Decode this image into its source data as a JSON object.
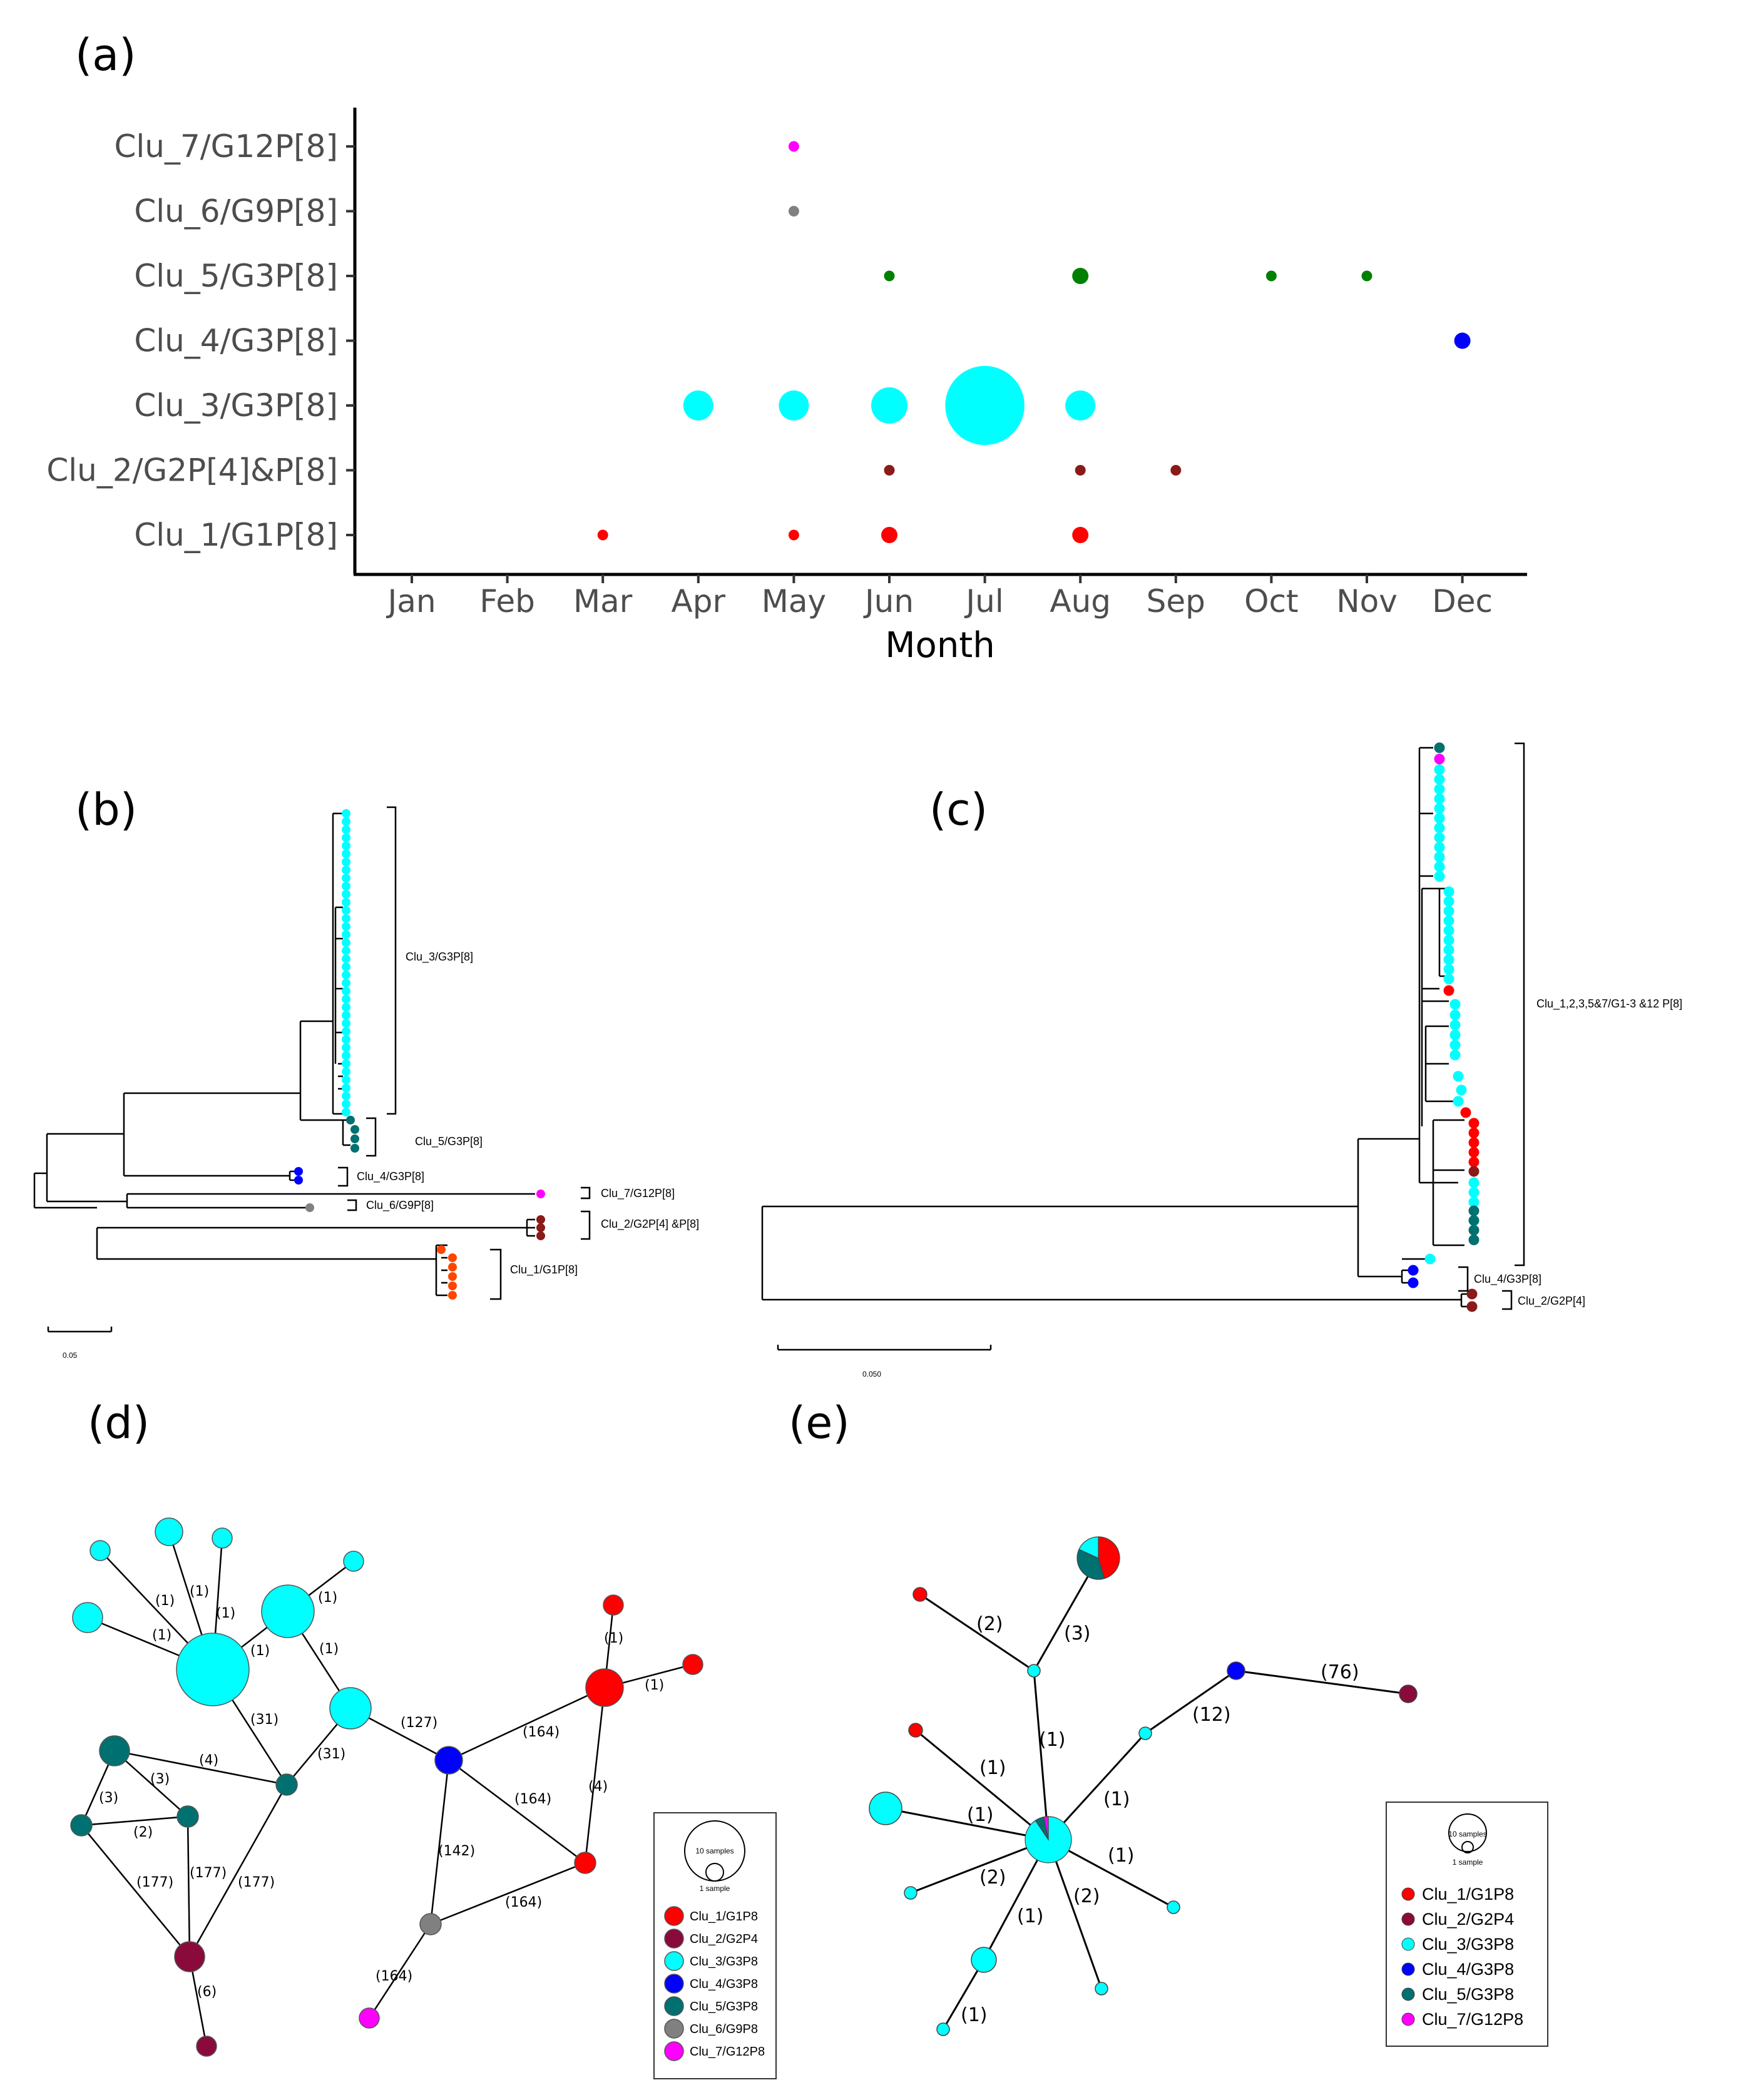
{
  "colors": {
    "Clu_1": "#ff0000",
    "Clu_2": "#8b1a1a",
    "Clu_2_net": "#8b0a3c",
    "Clu_3": "#00ffff",
    "Clu_4": "#0000ff",
    "Clu_5": "#008000",
    "Clu_5_net": "#007070",
    "Clu_6": "#808080",
    "Clu_7": "#ff00ff",
    "Clu_1_tree_b": "#ff4500"
  },
  "panels": {
    "a": "(a)",
    "b": "(b)",
    "c": "(c)",
    "d": "(d)",
    "e": "(e)"
  },
  "chart_data": [
    {
      "panel": "a",
      "type": "scatter",
      "subtype": "bubble",
      "xlabel": "Month",
      "categories": [
        "Jan",
        "Feb",
        "Mar",
        "Apr",
        "May",
        "Jun",
        "Jul",
        "Aug",
        "Sep",
        "Oct",
        "Nov",
        "Dec"
      ],
      "y_categories": [
        "Clu_1/G1P[8]",
        "Clu_2/G2P[4]&P[8]",
        "Clu_3/G3P[8]",
        "Clu_4/G3P[8]",
        "Clu_5/G3P[8]",
        "Clu_6/G9P[8]",
        "Clu_7/G12P[8]"
      ],
      "series": [
        {
          "name": "Clu_1/G1P[8]",
          "color_key": "Clu_1",
          "points": [
            {
              "x": "Mar",
              "size": 1
            },
            {
              "x": "May",
              "size": 1
            },
            {
              "x": "Jun",
              "size": 2
            },
            {
              "x": "Aug",
              "size": 2
            }
          ]
        },
        {
          "name": "Clu_2/G2P[4]&P[8]",
          "color_key": "Clu_2",
          "points": [
            {
              "x": "Jun",
              "size": 1
            },
            {
              "x": "Aug",
              "size": 1
            },
            {
              "x": "Sep",
              "size": 1
            }
          ]
        },
        {
          "name": "Clu_3/G3P[8]",
          "color_key": "Clu_3",
          "points": [
            {
              "x": "Apr",
              "size": 4
            },
            {
              "x": "May",
              "size": 4
            },
            {
              "x": "Jun",
              "size": 5
            },
            {
              "x": "Jul",
              "size": 40
            },
            {
              "x": "Aug",
              "size": 4
            }
          ]
        },
        {
          "name": "Clu_4/G3P[8]",
          "color_key": "Clu_4",
          "points": [
            {
              "x": "Dec",
              "size": 2
            }
          ]
        },
        {
          "name": "Clu_5/G3P[8]",
          "color_key": "Clu_5",
          "points": [
            {
              "x": "Jun",
              "size": 1
            },
            {
              "x": "Aug",
              "size": 2
            },
            {
              "x": "Oct",
              "size": 1
            },
            {
              "x": "Nov",
              "size": 1
            }
          ]
        },
        {
          "name": "Clu_6/G9P[8]",
          "color_key": "Clu_6",
          "points": [
            {
              "x": "May",
              "size": 1
            }
          ]
        },
        {
          "name": "Clu_7/G12P[8]",
          "color_key": "Clu_7",
          "points": [
            {
              "x": "May",
              "size": 1
            }
          ]
        }
      ]
    },
    {
      "panel": "b",
      "type": "tree",
      "scale_label": "0.05",
      "clade_labels": [
        "Clu_3/G3P[8]",
        "Clu_5/G3P[8]",
        "Clu_4/G3P[8]",
        "Clu_7/G12P[8]",
        "Clu_6/G9P[8]",
        "Clu_2/G2P[4] &P[8]",
        "Clu_1/G1P[8]"
      ]
    },
    {
      "panel": "c",
      "type": "tree",
      "scale_label": "0.050",
      "clade_labels": [
        "Clu_1,2,3,5&7/G1-3 &12 P[8]",
        "Clu_4/G3P[8]",
        "Clu_2/G2P[4]"
      ]
    },
    {
      "panel": "d",
      "type": "network",
      "legend_title_large": "10 samples",
      "legend_title_small": "1 sample",
      "legend": [
        "Clu_1/G1P8",
        "Clu_2/G2P4",
        "Clu_3/G3P8",
        "Clu_4/G3P8",
        "Clu_5/G3P8",
        "Clu_6/G9P8",
        "Clu_7/G12P8"
      ],
      "edge_labels": [
        "(1)",
        "(1)",
        "(1)",
        "(1)",
        "(1)",
        "(1)",
        "(1)",
        "(31)",
        "(31)",
        "(127)",
        "(4)",
        "(3)",
        "(3)",
        "(2)",
        "(177)",
        "(177)",
        "(177)",
        "(6)",
        "(164)",
        "(164)",
        "(142)",
        "(164)",
        "(164)",
        "(4)",
        "(1)",
        "(1)"
      ]
    },
    {
      "panel": "e",
      "type": "network",
      "legend_title_large": "10 samples",
      "legend_title_small": "1 sample",
      "legend": [
        "Clu_1/G1P8",
        "Clu_2/G2P4",
        "Clu_3/G3P8",
        "Clu_4/G3P8",
        "Clu_5/G3P8",
        "Clu_7/G12P8"
      ],
      "edge_labels": [
        "(2)",
        "(3)",
        "(1)",
        "(1)",
        "(1)",
        "(1)",
        "(1)",
        "(2)",
        "(1)",
        "(2)",
        "(1)",
        "(12)",
        "(76)"
      ]
    }
  ]
}
